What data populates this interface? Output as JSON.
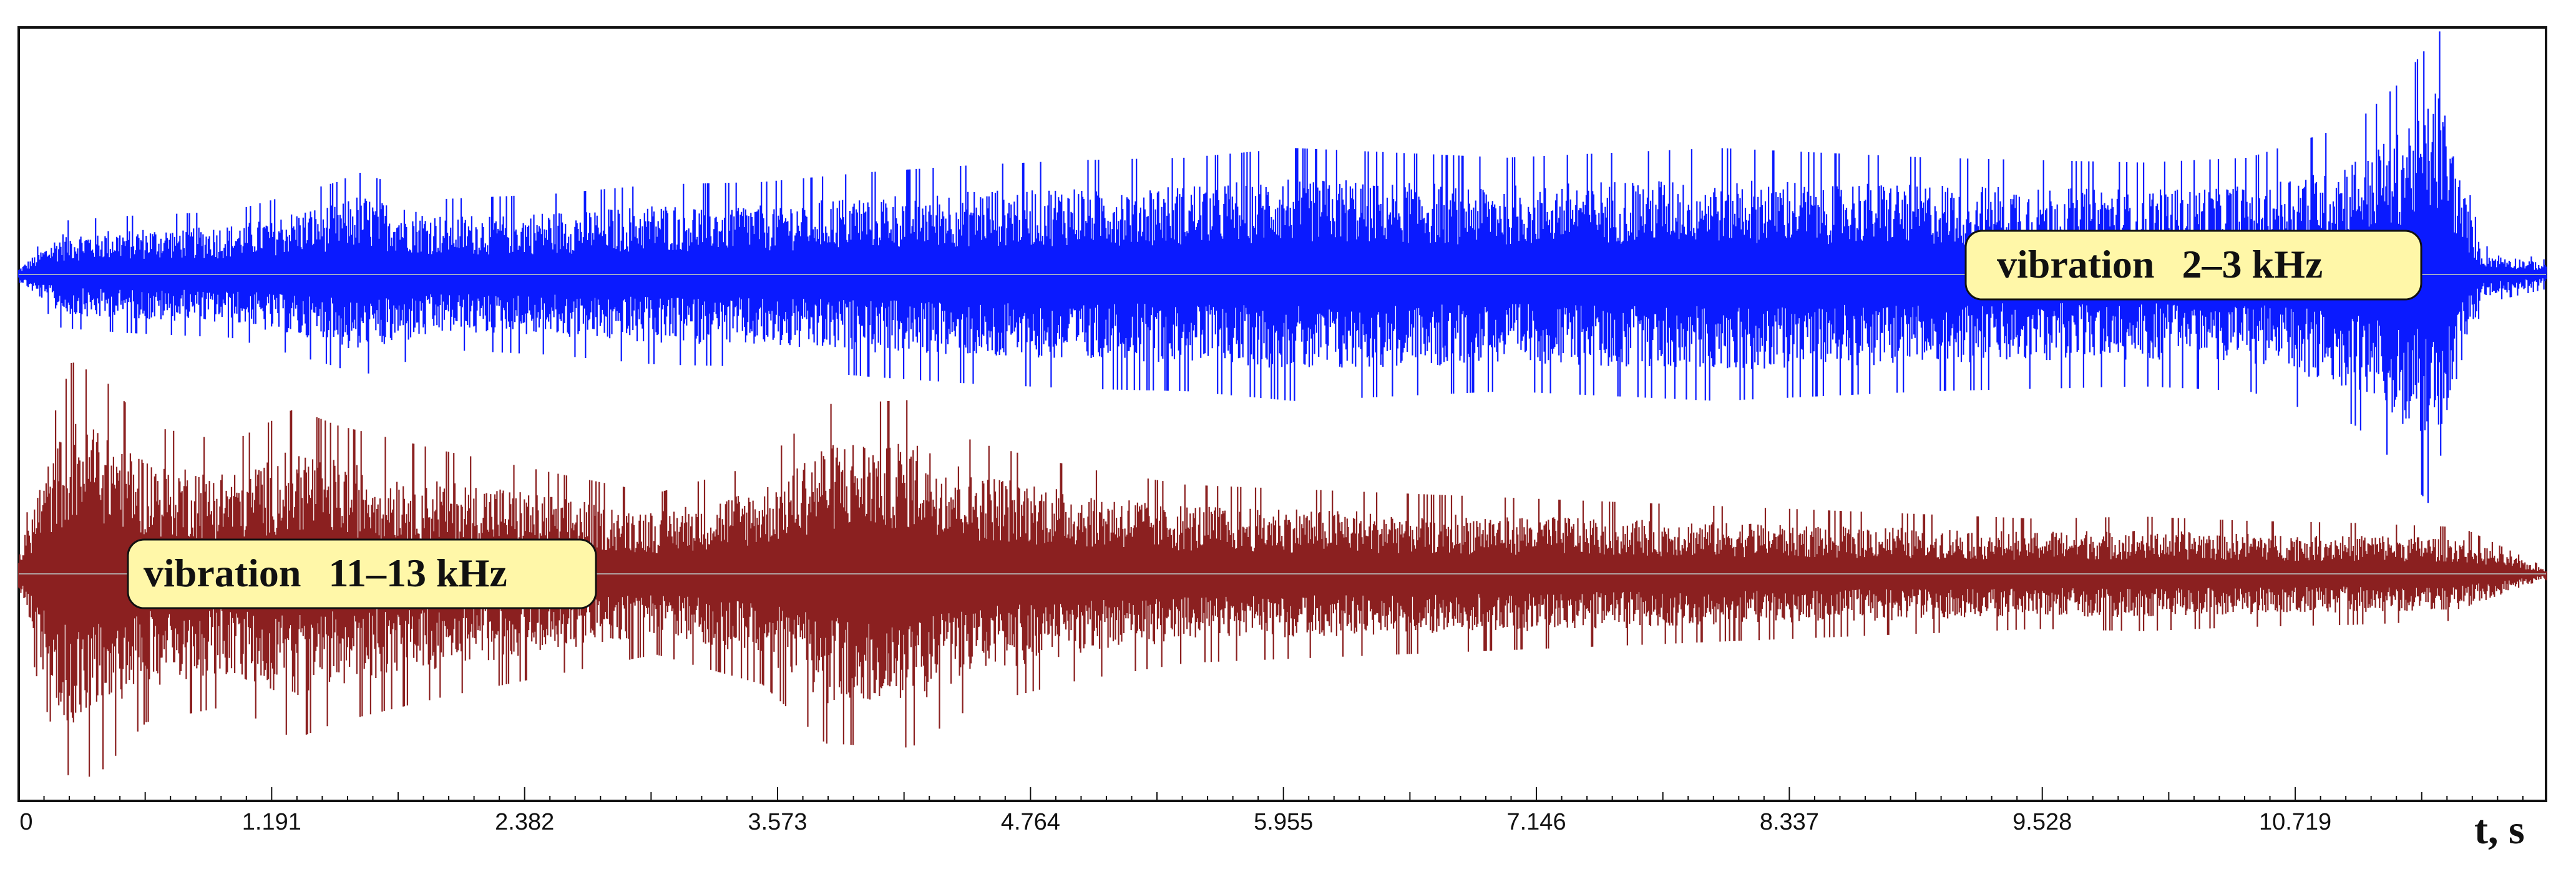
{
  "chart_data": {
    "type": "line",
    "title": "",
    "xlabel": "t, s",
    "ylabel": "",
    "xlim": [
      0,
      11.9
    ],
    "grid": false,
    "x_ticks": [
      "0",
      "1.191",
      "2.382",
      "3.573",
      "4.764",
      "5.955",
      "7.146",
      "8.337",
      "9.528",
      "10.719"
    ],
    "series": [
      {
        "name": "vibration 2–3 kHz",
        "color": "#0a1aff",
        "envelope_t": [
          0.0,
          0.2,
          0.5,
          1.0,
          1.5,
          1.6,
          2.0,
          2.5,
          3.0,
          3.5,
          4.0,
          4.5,
          5.0,
          5.5,
          6.0,
          6.5,
          7.0,
          7.5,
          8.0,
          8.5,
          9.0,
          9.5,
          10.0,
          10.5,
          11.0,
          11.2,
          11.4,
          11.5,
          11.6,
          11.9
        ],
        "envelope_amp": [
          0.03,
          0.22,
          0.24,
          0.26,
          0.38,
          0.42,
          0.31,
          0.33,
          0.37,
          0.38,
          0.42,
          0.45,
          0.47,
          0.48,
          0.52,
          0.5,
          0.48,
          0.5,
          0.52,
          0.5,
          0.48,
          0.47,
          0.46,
          0.48,
          0.62,
          0.78,
          1.0,
          0.48,
          0.12,
          0.06
        ]
      },
      {
        "name": "vibration 11–13 kHz",
        "color": "#8b2020",
        "envelope_t": [
          0.0,
          0.1,
          0.25,
          0.4,
          0.6,
          1.0,
          1.3,
          1.5,
          2.0,
          2.5,
          3.0,
          3.5,
          3.8,
          4.2,
          4.5,
          5.0,
          5.5,
          6.0,
          6.5,
          7.0,
          7.5,
          8.0,
          8.5,
          9.0,
          9.5,
          10.0,
          10.5,
          11.0,
          11.5,
          11.9
        ],
        "envelope_amp": [
          0.12,
          0.55,
          1.0,
          0.92,
          0.7,
          0.62,
          0.78,
          0.7,
          0.58,
          0.48,
          0.38,
          0.52,
          0.8,
          0.82,
          0.62,
          0.5,
          0.42,
          0.4,
          0.38,
          0.36,
          0.34,
          0.32,
          0.3,
          0.28,
          0.26,
          0.27,
          0.25,
          0.24,
          0.22,
          0.03
        ]
      }
    ],
    "annotations": [
      {
        "text_main": "vibration",
        "text_range": "2–3 kHz"
      },
      {
        "text_main": "vibration",
        "text_range": "11–13 kHz"
      }
    ]
  }
}
